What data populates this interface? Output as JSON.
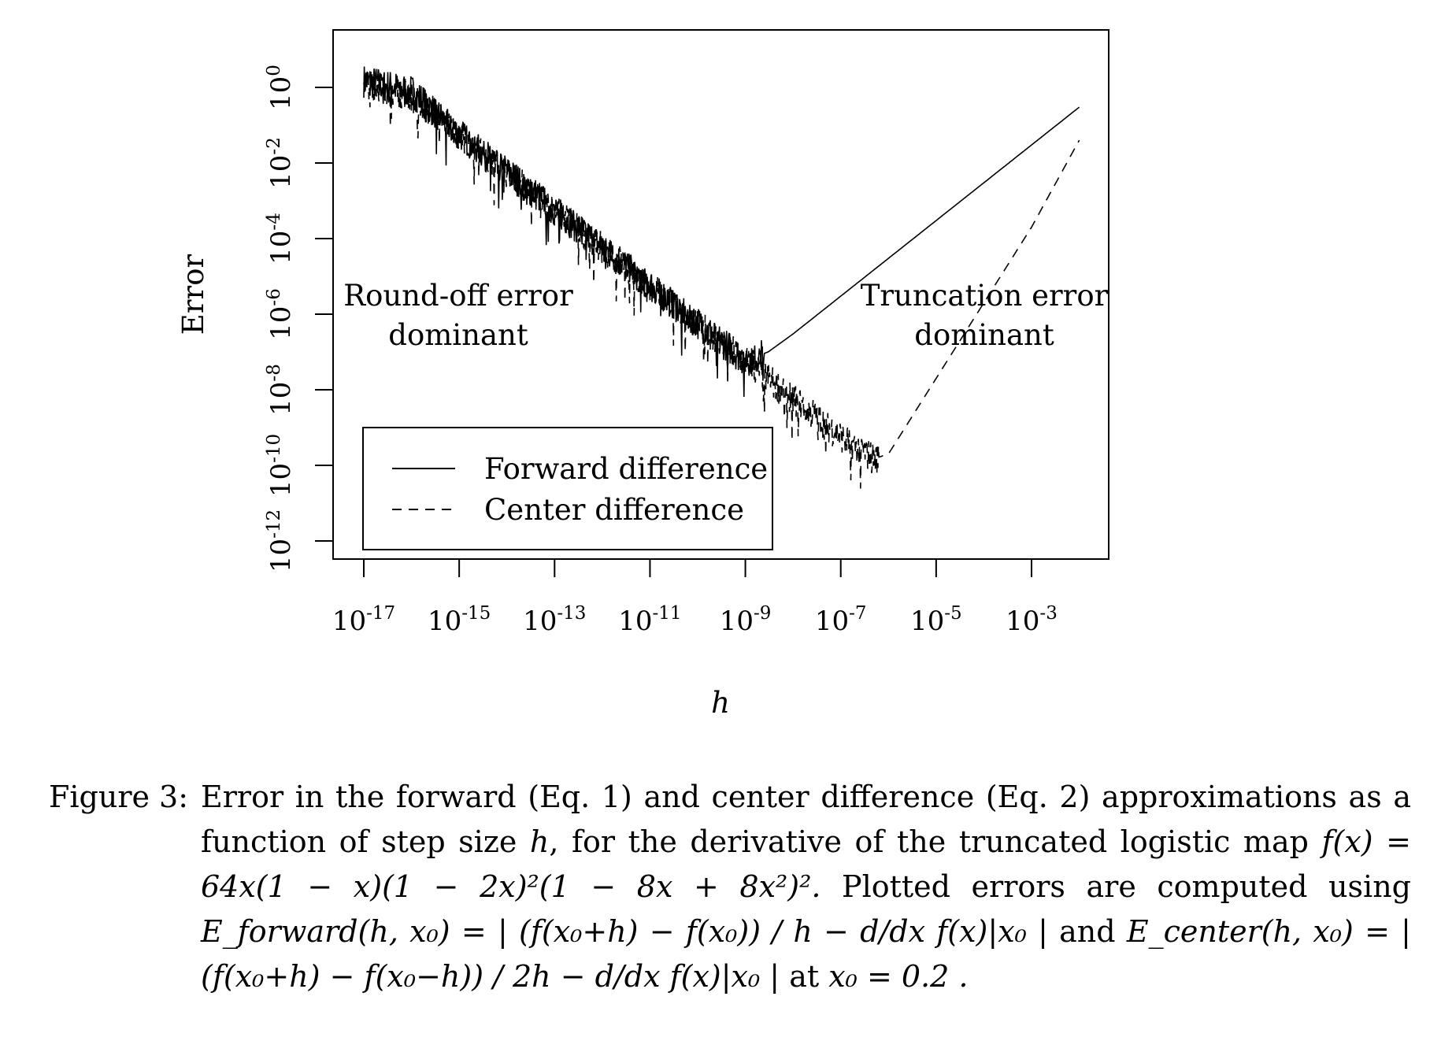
{
  "chart_data": {
    "type": "line",
    "xlabel": "h",
    "ylabel": "Error",
    "x_scale": "log10",
    "y_scale": "log10",
    "xlim": [
      1e-17,
      0.01
    ],
    "ylim": [
      1e-12,
      1
    ],
    "x_ticks": [
      {
        "base": "10",
        "exp": "-17"
      },
      {
        "base": "10",
        "exp": "-15"
      },
      {
        "base": "10",
        "exp": "-13"
      },
      {
        "base": "10",
        "exp": "-11"
      },
      {
        "base": "10",
        "exp": "-9"
      },
      {
        "base": "10",
        "exp": "-7"
      },
      {
        "base": "10",
        "exp": "-5"
      },
      {
        "base": "10",
        "exp": "-3"
      }
    ],
    "y_ticks": [
      {
        "base": "10",
        "exp": "0"
      },
      {
        "base": "10",
        "exp": "-2"
      },
      {
        "base": "10",
        "exp": "-4"
      },
      {
        "base": "10",
        "exp": "-6"
      },
      {
        "base": "10",
        "exp": "-8"
      },
      {
        "base": "10",
        "exp": "-10"
      },
      {
        "base": "10",
        "exp": "-12"
      }
    ],
    "legend_position": "bottom-left",
    "series": [
      {
        "name": "Forward difference",
        "style": "solid",
        "x": [
          1e-17,
          1e-16,
          1e-15,
          1e-14,
          1e-13,
          1e-12,
          1e-11,
          1e-10,
          1e-09,
          3e-09,
          1e-08,
          1e-07,
          1e-06,
          1e-05,
          0.0001,
          0.001,
          0.01
        ],
        "y": [
          1.5,
          0.8,
          0.06,
          0.006,
          0.0006,
          6e-05,
          6e-06,
          6e-07,
          6e-08,
          1e-07,
          3e-07,
          3e-06,
          3e-05,
          0.0003,
          0.003,
          0.03,
          0.3
        ]
      },
      {
        "name": "Center difference",
        "style": "dashed",
        "x": [
          1e-17,
          1e-16,
          1e-15,
          1e-14,
          1e-13,
          1e-12,
          1e-11,
          1e-10,
          1e-09,
          1e-08,
          1e-07,
          5e-07,
          1e-06,
          1e-05,
          0.0001,
          0.001,
          0.01
        ],
        "y": [
          1.5,
          0.6,
          0.06,
          0.006,
          0.0006,
          6e-05,
          6e-06,
          6e-07,
          6e-08,
          6e-09,
          6e-10,
          1.5e-10,
          2e-10,
          2e-08,
          2e-06,
          0.0002,
          0.04
        ]
      }
    ],
    "annotations": [
      {
        "lines": [
          "Round-off error",
          "dominant"
        ]
      },
      {
        "lines": [
          "Truncation error",
          "dominant"
        ]
      }
    ]
  },
  "caption": {
    "label": "Figure 3:",
    "text1": "Error in the forward (Eq. 1) and center difference (Eq. 2) approximations as a function of step size ",
    "h": "h",
    "text2": ", for the derivative of the truncated logistic map ",
    "map": "f(x) = 64x(1 − x)(1 − 2x)²(1 − 8x + 8x²)².",
    "text3": " Plotted errors are computed using ",
    "e_forward": "E_forward(h, x₀) = | (f(x₀+h) − f(x₀)) / h − d/dx f(x)|x₀ |",
    "text4": " and ",
    "e_center": "E_center(h, x₀) = | (f(x₀+h) − f(x₀−h)) / 2h − d/dx f(x)|x₀ |",
    "text5": " at ",
    "x0_value": "x₀ = 0.2 ."
  }
}
